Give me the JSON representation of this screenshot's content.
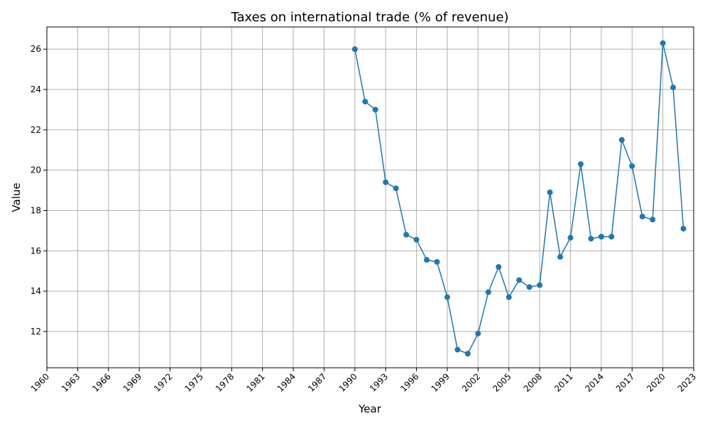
{
  "chart_data": {
    "type": "line",
    "title": "Taxes on international trade (% of revenue)",
    "xlabel": "Year",
    "ylabel": "Value",
    "grid": true,
    "xlim": [
      1960,
      2023
    ],
    "ylim": [
      10.2,
      27.1
    ],
    "x_ticks": [
      1960,
      1963,
      1966,
      1969,
      1972,
      1975,
      1978,
      1981,
      1984,
      1987,
      1990,
      1993,
      1996,
      1999,
      2002,
      2005,
      2008,
      2011,
      2014,
      2017,
      2020,
      2023
    ],
    "y_ticks": [
      12,
      14,
      16,
      18,
      20,
      22,
      24,
      26
    ],
    "color": "#1f77b4",
    "x": [
      1990,
      1991,
      1992,
      1993,
      1994,
      1995,
      1996,
      1997,
      1998,
      1999,
      2000,
      2001,
      2002,
      2003,
      2004,
      2005,
      2006,
      2007,
      2008,
      2009,
      2010,
      2011,
      2012,
      2013,
      2014,
      2015,
      2016,
      2017,
      2018,
      2019,
      2020,
      2021,
      2022
    ],
    "values": [
      26.0,
      23.4,
      23.0,
      19.4,
      19.1,
      16.8,
      16.55,
      15.55,
      15.45,
      13.7,
      11.1,
      10.9,
      11.9,
      13.95,
      15.2,
      13.7,
      14.55,
      14.2,
      14.3,
      18.9,
      15.7,
      16.65,
      20.3,
      16.6,
      16.7,
      16.7,
      21.5,
      20.2,
      17.7,
      17.55,
      26.3,
      24.1,
      17.1
    ]
  }
}
